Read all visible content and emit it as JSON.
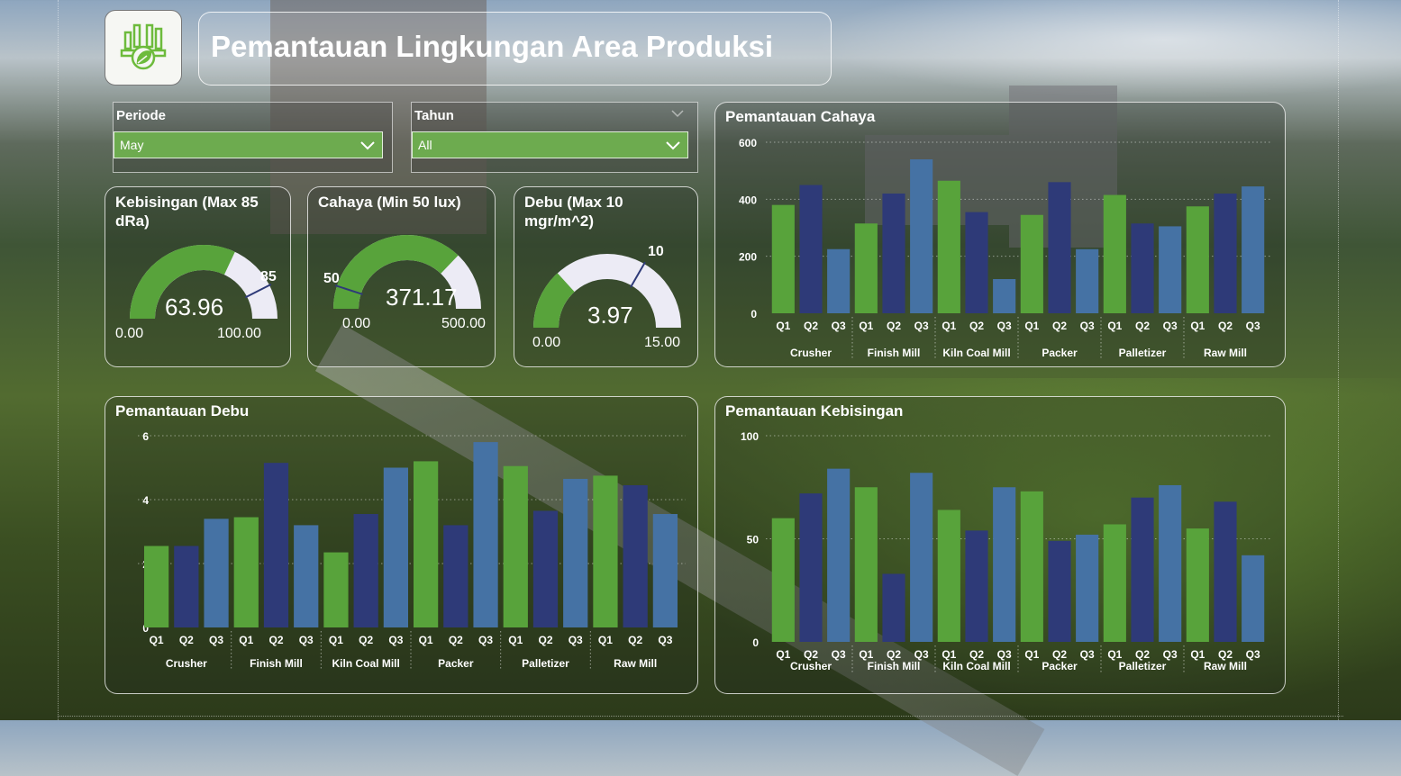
{
  "header": {
    "title": "Pemantauan Lingkungan Area Produksi",
    "logo_icon": "eco-chart-leaf-icon"
  },
  "filters": {
    "periode": {
      "label": "Periode",
      "value": "May"
    },
    "tahun": {
      "label": "Tahun",
      "value": "All"
    }
  },
  "colors": {
    "green": "#58a33b",
    "navy": "#2e3a78",
    "steel": "#4572a4",
    "track": "#ecebf5",
    "marker": "#2e3a78"
  },
  "gauges": [
    {
      "id": "kebisingan",
      "title": "Kebisingan (Max 85 dRa)",
      "value": 63.96,
      "value_label": "63.96",
      "min_label": "0.00",
      "max_label": "100.00",
      "target_label": "85",
      "min": 0,
      "max": 100,
      "target": 85
    },
    {
      "id": "cahaya",
      "title": "Cahaya (Min 50 lux)",
      "value": 371.17,
      "value_label": "371.17",
      "min_label": "0.00",
      "max_label": "500.00",
      "target_label": "50",
      "min": 0,
      "max": 500,
      "target": 50
    },
    {
      "id": "debu",
      "title": "Debu (Max 10 mgr/m^2)",
      "value": 3.97,
      "value_label": "3.97",
      "min_label": "0.00",
      "max_label": "15.00",
      "target_label": "10",
      "min": 0,
      "max": 15,
      "target": 10
    }
  ],
  "chart_data": [
    {
      "id": "cahaya",
      "type": "bar",
      "title": "Pemantauan Cahaya",
      "groups": [
        "Crusher",
        "Finish Mill",
        "Kiln Coal Mill",
        "Packer",
        "Palletizer",
        "Raw Mill"
      ],
      "categories": [
        "Q1",
        "Q2",
        "Q3"
      ],
      "values": [
        [
          380,
          450,
          225
        ],
        [
          315,
          420,
          540
        ],
        [
          465,
          355,
          120
        ],
        [
          345,
          460,
          225
        ],
        [
          415,
          315,
          305
        ],
        [
          375,
          420,
          445
        ]
      ],
      "ylim": [
        0,
        600
      ],
      "yticks": [
        "0",
        "200",
        "400",
        "600"
      ],
      "ytick_values": [
        0,
        200,
        400,
        600
      ],
      "grid": true,
      "legend": "none"
    },
    {
      "id": "debu",
      "type": "bar",
      "title": "Pemantauan Debu",
      "groups": [
        "Crusher",
        "Finish Mill",
        "Kiln Coal Mill",
        "Packer",
        "Palletizer",
        "Raw Mill"
      ],
      "categories": [
        "Q1",
        "Q2",
        "Q3"
      ],
      "values": [
        [
          2.55,
          2.55,
          3.4
        ],
        [
          3.45,
          5.15,
          3.2
        ],
        [
          2.35,
          3.55,
          5.0
        ],
        [
          5.2,
          3.2,
          5.8
        ],
        [
          5.05,
          3.65,
          4.65
        ],
        [
          4.75,
          4.45,
          3.55
        ]
      ],
      "ylim": [
        0,
        6
      ],
      "yticks": [
        "0",
        "2",
        "4",
        "6"
      ],
      "ytick_values": [
        0,
        2,
        4,
        6
      ],
      "grid": true,
      "legend": "none"
    },
    {
      "id": "kebisingan",
      "type": "bar",
      "title": "Pemantauan Kebisingan",
      "groups": [
        "Crusher",
        "Finish Mill",
        "Kiln Coal Mill",
        "Packer",
        "Palletizer",
        "Raw Mill"
      ],
      "categories": [
        "Q1",
        "Q2",
        "Q3"
      ],
      "values": [
        [
          60,
          72,
          84
        ],
        [
          75,
          33,
          82
        ],
        [
          64,
          54,
          75
        ],
        [
          73,
          49,
          52
        ],
        [
          57,
          70,
          76
        ],
        [
          55,
          68,
          42
        ]
      ],
      "ylim": [
        0,
        100
      ],
      "yticks": [
        "0",
        "50",
        "100"
      ],
      "ytick_values": [
        0,
        50,
        100
      ],
      "grid": true,
      "legend": "none"
    }
  ]
}
